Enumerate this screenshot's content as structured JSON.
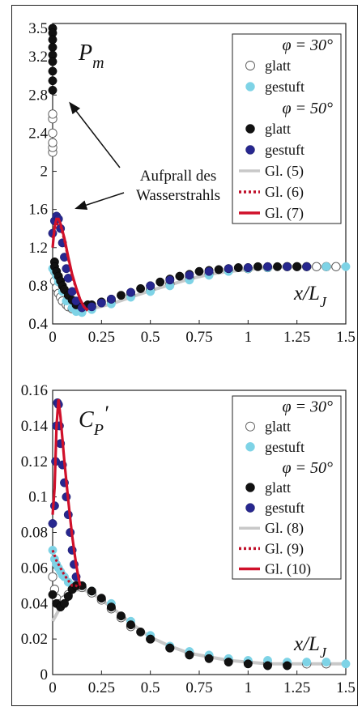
{
  "colors": {
    "smooth_30": "#ffffff",
    "stepped_30": "#7ed3e6",
    "smooth_50": "#111111",
    "stepped_50": "#27278f",
    "fit_grey": "#c8c8c8",
    "fit_dotted": "#c0102a",
    "fit_solid": "#d0102a"
  },
  "chart_data": [
    {
      "type": "scatter",
      "panel_label": "P",
      "panel_label_sub": "m",
      "x_label": "x/L",
      "x_label_sub": "J",
      "xlim": [
        0,
        1.5
      ],
      "ylim": [
        0.4,
        3.55
      ],
      "x_ticks": [
        {
          "value": 0,
          "label": "0"
        },
        {
          "value": 0.25,
          "label": "0.25"
        },
        {
          "value": 0.5,
          "label": "0.5"
        },
        {
          "value": 0.75,
          "label": "0.75"
        },
        {
          "value": 1,
          "label": "1"
        },
        {
          "value": 1.25,
          "label": "1.25"
        },
        {
          "value": 1.5,
          "label": "1.5"
        }
      ],
      "y_ticks": [
        {
          "value": 0.4,
          "label": "0.4"
        },
        {
          "value": 0.8,
          "label": "0.8"
        },
        {
          "value": 1.2,
          "label": "1.2"
        },
        {
          "value": 1.6,
          "label": "1.6"
        },
        {
          "value": 2,
          "label": "2"
        },
        {
          "value": 2.4,
          "label": "2.4"
        },
        {
          "value": 2.8,
          "label": "2.8"
        },
        {
          "value": 3.2,
          "label": "3.2"
        },
        {
          "value": 3.5,
          "label": "3.5"
        }
      ],
      "grid": false,
      "legend_position": "top-right",
      "legend": {
        "group1": "φ = 30°",
        "group2": "φ = 50°",
        "smooth": "glatt",
        "stepped": "gestuft",
        "fit1": "Gl. (5)",
        "fit2": "Gl. (6)",
        "fit3": "Gl. (7)"
      },
      "annotation": {
        "line1": "Aufprall des",
        "line2": "Wasserstrahls"
      },
      "series": [
        {
          "key": "smooth_30",
          "x": [
            0,
            0,
            0,
            0,
            0,
            0,
            0.01,
            0.01,
            0.02,
            0.03,
            0.04,
            0.05,
            0.07,
            0.08,
            0.1,
            0.12,
            0.15,
            0.2,
            0.3,
            0.4,
            0.5,
            0.6,
            0.7,
            0.8,
            0.9,
            1.0,
            1.1,
            1.2,
            1.25,
            1.3,
            1.35,
            1.4,
            1.45
          ],
          "y": [
            2.2,
            2.25,
            2.3,
            2.4,
            2.55,
            2.6,
            0.95,
            0.85,
            0.78,
            0.72,
            0.68,
            0.64,
            0.6,
            0.58,
            0.56,
            0.54,
            0.54,
            0.58,
            0.64,
            0.7,
            0.76,
            0.82,
            0.88,
            0.93,
            0.96,
            0.98,
            0.99,
            1.0,
            1.0,
            1.0,
            1.0,
            1.0,
            1.0
          ]
        },
        {
          "key": "stepped_30",
          "x": [
            0,
            0.01,
            0.02,
            0.03,
            0.05,
            0.07,
            0.1,
            0.12,
            0.15,
            0.2,
            0.3,
            0.4,
            0.5,
            0.6,
            0.7,
            0.8,
            0.9,
            1.0,
            1.1,
            1.2,
            1.3,
            1.4,
            1.5
          ],
          "y": [
            0.98,
            0.95,
            0.9,
            0.84,
            0.74,
            0.64,
            0.57,
            0.53,
            0.52,
            0.55,
            0.61,
            0.68,
            0.74,
            0.8,
            0.86,
            0.91,
            0.95,
            0.98,
            0.99,
            1.0,
            1.0,
            1.0,
            1.0
          ]
        },
        {
          "key": "smooth_50",
          "x": [
            0,
            0,
            0,
            0,
            0,
            0,
            0,
            0,
            0,
            0.01,
            0.01,
            0.02,
            0.03,
            0.04,
            0.05,
            0.06,
            0.08,
            0.1,
            0.12,
            0.15,
            0.18,
            0.2,
            0.25,
            0.3,
            0.35,
            0.4,
            0.45,
            0.5,
            0.55,
            0.6,
            0.65,
            0.7,
            0.75,
            0.8,
            0.85,
            0.9,
            0.95,
            1.0,
            1.05,
            1.1,
            1.15,
            1.2,
            1.25,
            1.3
          ],
          "y": [
            3.5,
            3.45,
            3.38,
            3.3,
            3.22,
            3.15,
            3.05,
            2.95,
            2.85,
            1.05,
            1.0,
            0.95,
            0.9,
            0.85,
            0.8,
            0.76,
            0.7,
            0.65,
            0.6,
            0.58,
            0.6,
            0.6,
            0.63,
            0.66,
            0.7,
            0.73,
            0.77,
            0.8,
            0.84,
            0.87,
            0.9,
            0.92,
            0.95,
            0.96,
            0.97,
            0.98,
            0.99,
            0.99,
            1.0,
            1.0,
            1.0,
            1.0,
            1.0,
            1.0
          ]
        },
        {
          "key": "stepped_50",
          "x": [
            0,
            0.01,
            0.02,
            0.03,
            0.04,
            0.05,
            0.06,
            0.07,
            0.08,
            0.1,
            0.12,
            0.15,
            0.2,
            0.25,
            0.3,
            0.4,
            0.5,
            0.6,
            0.7,
            0.8,
            0.9,
            1.0,
            1.1,
            1.2,
            1.3
          ],
          "y": [
            1.35,
            1.48,
            1.53,
            1.5,
            1.4,
            1.25,
            1.1,
            0.98,
            0.88,
            0.74,
            0.64,
            0.57,
            0.58,
            0.62,
            0.66,
            0.73,
            0.8,
            0.86,
            0.91,
            0.95,
            0.98,
            0.99,
            1.0,
            1.0,
            1.0
          ]
        }
      ],
      "fits": [
        {
          "key": "fit_grey",
          "style": "solid",
          "x": [
            0,
            0.05,
            0.1,
            0.15,
            0.2,
            0.3,
            0.4,
            0.5,
            0.6,
            0.7,
            0.8,
            0.9,
            1.0,
            1.1,
            1.2,
            1.3,
            1.4,
            1.5
          ],
          "y": [
            0.8,
            0.66,
            0.58,
            0.55,
            0.56,
            0.61,
            0.68,
            0.75,
            0.81,
            0.87,
            0.92,
            0.95,
            0.97,
            0.99,
            1.0,
            1.0,
            1.0,
            1.0
          ]
        },
        {
          "key": "fit_dotted",
          "style": "dotted",
          "x": [
            0,
            0.02,
            0.04,
            0.06,
            0.08,
            0.1,
            0.12,
            0.14,
            0.16,
            0.18
          ],
          "y": [
            1.3,
            1.45,
            1.42,
            1.28,
            1.08,
            0.9,
            0.77,
            0.66,
            0.58,
            0.55
          ]
        },
        {
          "key": "fit_solid",
          "style": "solid",
          "x": [
            0,
            0.01,
            0.02,
            0.03,
            0.04,
            0.06,
            0.08,
            0.1,
            0.12,
            0.14,
            0.16,
            0.18
          ],
          "y": [
            1.2,
            1.42,
            1.5,
            1.5,
            1.45,
            1.3,
            1.1,
            0.92,
            0.78,
            0.66,
            0.58,
            0.54
          ]
        }
      ]
    },
    {
      "type": "scatter",
      "panel_label": "C",
      "panel_label_sub": "P",
      "panel_label_sup": "′",
      "x_label": "x/L",
      "x_label_sub": "J",
      "xlim": [
        0,
        1.5
      ],
      "ylim": [
        0,
        0.16
      ],
      "x_ticks": [
        {
          "value": 0,
          "label": "0"
        },
        {
          "value": 0.25,
          "label": "0.25"
        },
        {
          "value": 0.5,
          "label": "0.5"
        },
        {
          "value": 0.75,
          "label": "0.75"
        },
        {
          "value": 1,
          "label": "1"
        },
        {
          "value": 1.25,
          "label": "1.25"
        },
        {
          "value": 1.5,
          "label": "1.5"
        }
      ],
      "y_ticks": [
        {
          "value": 0,
          "label": "0"
        },
        {
          "value": 0.02,
          "label": "0.02"
        },
        {
          "value": 0.04,
          "label": "0.04"
        },
        {
          "value": 0.06,
          "label": "0.06"
        },
        {
          "value": 0.08,
          "label": "0.08"
        },
        {
          "value": 0.1,
          "label": "0.1"
        },
        {
          "value": 0.12,
          "label": "0.12"
        },
        {
          "value": 0.14,
          "label": "0.14"
        },
        {
          "value": 0.16,
          "label": "0.16"
        }
      ],
      "grid": false,
      "legend_position": "top-right",
      "legend": {
        "group1": "φ = 30°",
        "group2": "φ = 50°",
        "smooth": "glatt",
        "stepped": "gestuft",
        "fit1": "Gl. (8)",
        "fit2": "Gl. (9)",
        "fit3": "Gl. (10)"
      },
      "series": [
        {
          "key": "smooth_30",
          "x": [
            0,
            0.01,
            0.02,
            0.04,
            0.06,
            0.08,
            0.1,
            0.12,
            0.15,
            0.2,
            0.25,
            0.3,
            0.35,
            0.4,
            0.5,
            0.6,
            0.7,
            0.8,
            0.9,
            1.0,
            1.1,
            1.2,
            1.3,
            1.4
          ],
          "y": [
            0.055,
            0.048,
            0.043,
            0.04,
            0.042,
            0.045,
            0.048,
            0.05,
            0.049,
            0.046,
            0.042,
            0.037,
            0.032,
            0.027,
            0.02,
            0.015,
            0.012,
            0.01,
            0.008,
            0.007,
            0.006,
            0.006,
            0.006,
            0.006
          ]
        },
        {
          "key": "stepped_30",
          "x": [
            0,
            0.01,
            0.02,
            0.03,
            0.04,
            0.05,
            0.06,
            0.08,
            0.1,
            0.15,
            0.2,
            0.3,
            0.4,
            0.5,
            0.6,
            0.7,
            0.8,
            0.9,
            1.0,
            1.1,
            1.2,
            1.3,
            1.4,
            1.5
          ],
          "y": [
            0.07,
            0.065,
            0.062,
            0.06,
            0.058,
            0.056,
            0.055,
            0.052,
            0.05,
            0.05,
            0.047,
            0.04,
            0.03,
            0.022,
            0.016,
            0.013,
            0.011,
            0.009,
            0.008,
            0.008,
            0.007,
            0.007,
            0.007,
            0.006
          ]
        },
        {
          "key": "smooth_50",
          "x": [
            0,
            0.02,
            0.04,
            0.06,
            0.08,
            0.1,
            0.12,
            0.15,
            0.2,
            0.25,
            0.3,
            0.35,
            0.4,
            0.45,
            0.5,
            0.6,
            0.7,
            0.8,
            0.9,
            1.0,
            1.1,
            1.2
          ],
          "y": [
            0.045,
            0.04,
            0.038,
            0.04,
            0.044,
            0.048,
            0.05,
            0.05,
            0.047,
            0.043,
            0.038,
            0.033,
            0.028,
            0.024,
            0.02,
            0.015,
            0.011,
            0.009,
            0.007,
            0.006,
            0.005,
            0.005
          ]
        },
        {
          "key": "stepped_50",
          "x": [
            0,
            0.01,
            0.015,
            0.02,
            0.025,
            0.03,
            0.035,
            0.04,
            0.05,
            0.06,
            0.07,
            0.08,
            0.09,
            0.1,
            0.11,
            0.12
          ],
          "y": [
            0.085,
            0.095,
            0.12,
            0.14,
            0.153,
            0.152,
            0.14,
            0.13,
            0.118,
            0.108,
            0.1,
            0.09,
            0.08,
            0.07,
            0.062,
            0.055
          ]
        }
      ],
      "fits": [
        {
          "key": "fit_grey",
          "style": "solid",
          "x": [
            0,
            0.05,
            0.1,
            0.15,
            0.2,
            0.3,
            0.4,
            0.5,
            0.6,
            0.7,
            0.8,
            0.9,
            1.0,
            1.1,
            1.2,
            1.3,
            1.4,
            1.5
          ],
          "y": [
            0.03,
            0.04,
            0.047,
            0.048,
            0.046,
            0.038,
            0.029,
            0.021,
            0.016,
            0.012,
            0.01,
            0.008,
            0.007,
            0.006,
            0.006,
            0.006,
            0.006,
            0.006
          ]
        },
        {
          "key": "fit_dotted",
          "style": "dotted",
          "x": [
            0,
            0.02,
            0.04,
            0.06,
            0.08,
            0.1,
            0.12,
            0.14
          ],
          "y": [
            0.07,
            0.064,
            0.06,
            0.056,
            0.053,
            0.05,
            0.05,
            0.049
          ]
        },
        {
          "key": "fit_solid",
          "style": "solid",
          "x": [
            0,
            0.01,
            0.02,
            0.03,
            0.04,
            0.06,
            0.08,
            0.1,
            0.12,
            0.14
          ],
          "y": [
            0.09,
            0.105,
            0.14,
            0.155,
            0.145,
            0.12,
            0.098,
            0.078,
            0.062,
            0.05
          ]
        }
      ]
    }
  ]
}
